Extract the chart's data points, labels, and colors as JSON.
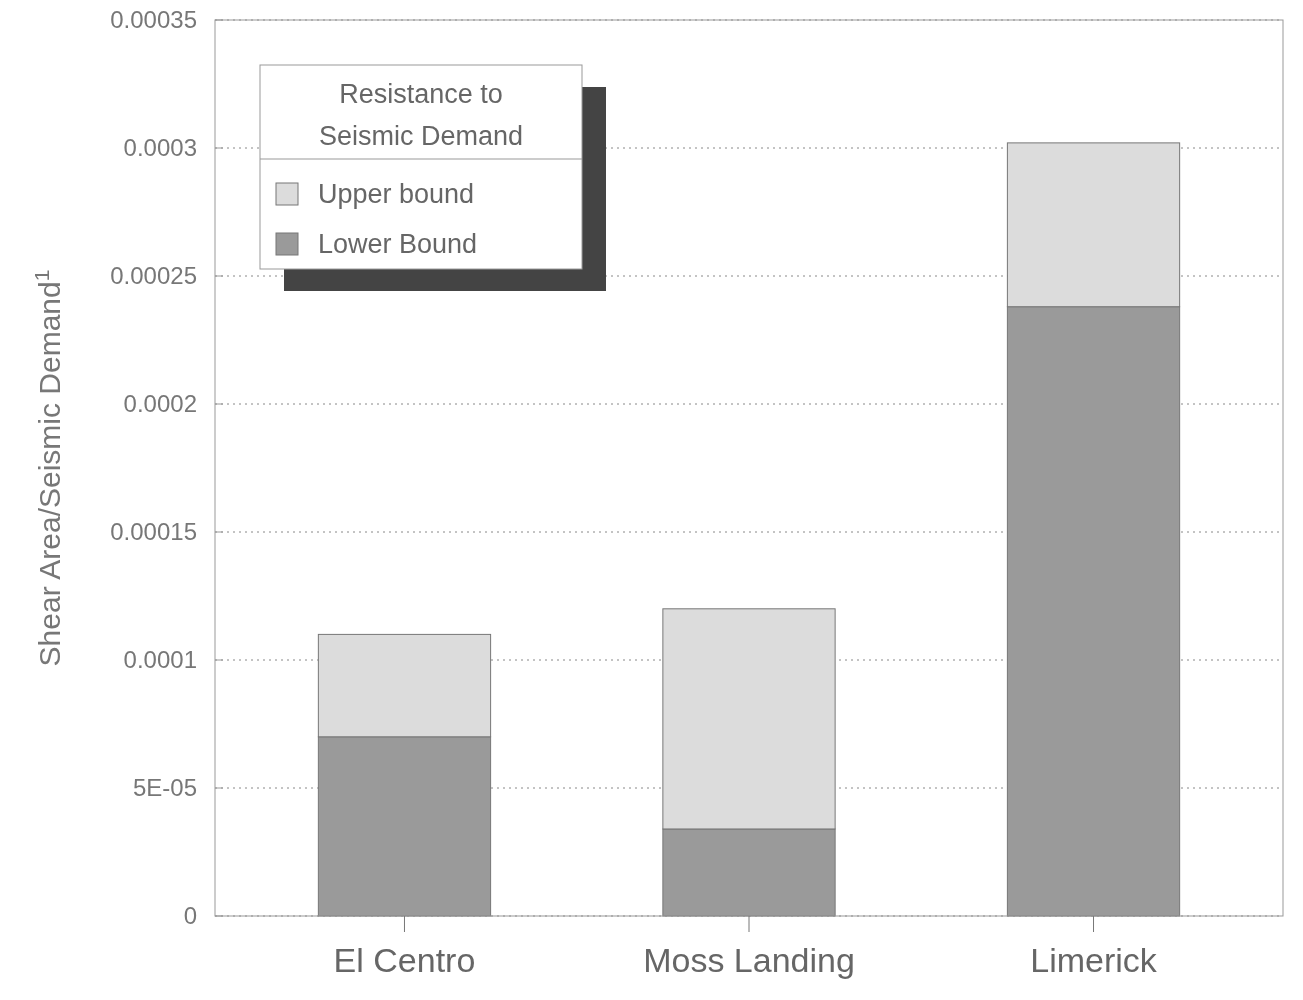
{
  "chart_data": {
    "type": "bar",
    "stacked": true,
    "categories": [
      "El Centro",
      "Moss Landing",
      "Limerick"
    ],
    "series": [
      {
        "name": "Lower Bound",
        "color": "#9a9a9a",
        "values": [
          7e-05,
          3.4e-05,
          0.000238
        ]
      },
      {
        "name": "Upper bound",
        "color": "#dcdcdc",
        "values": [
          4e-05,
          8.6e-05,
          6.4e-05
        ]
      }
    ],
    "ylabel": "Shear Area/Seismic Demand$^{1}$",
    "legend_title": "Resistance to Seismic Demand",
    "legend": "top left",
    "ylim": [
      0,
      0.00035
    ],
    "yticks": [
      0,
      {
        "value": 5e-05,
        "label": "5E-05"
      },
      {
        "value": 0.0001,
        "label": "0.0001"
      },
      {
        "value": 0.00015,
        "label": "0.00015"
      },
      {
        "value": 0.0002,
        "label": "0.0002"
      },
      {
        "value": 0.00025,
        "label": "0.00025"
      },
      {
        "value": 0.0003,
        "label": "0.0003"
      },
      {
        "value": 0.00035,
        "label": "0.00035"
      }
    ],
    "grid": "y"
  }
}
